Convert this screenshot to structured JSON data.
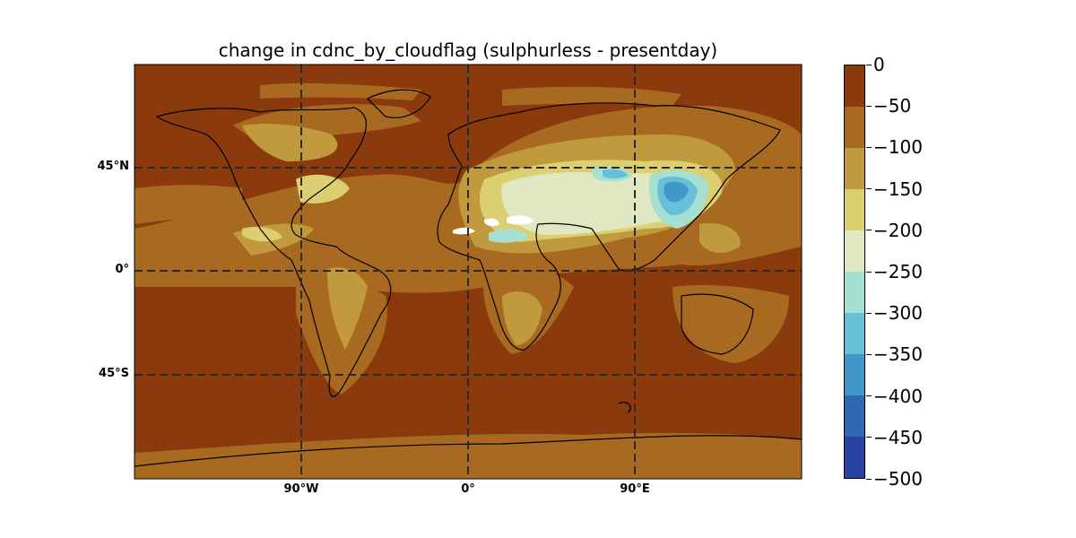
{
  "title": "change in cdnc_by_cloudflag (sulphurless - presentday)",
  "map": {
    "lat_labels": [
      {
        "lat": 45,
        "label": "45°N"
      },
      {
        "lat": 0,
        "label": "0°"
      },
      {
        "lat": -45,
        "label": "45°S"
      }
    ],
    "lon_labels": [
      {
        "lon": -90,
        "label": "90°W"
      },
      {
        "lon": 0,
        "label": "0°"
      },
      {
        "lon": 90,
        "label": "90°E"
      }
    ],
    "lon_range": [
      -180,
      180
    ],
    "lat_range": [
      -90,
      90
    ],
    "gridlines": "dashed"
  },
  "colorbar": {
    "ticks": [
      "0",
      "−50",
      "−100",
      "−150",
      "−200",
      "−250",
      "−300",
      "−350",
      "−400",
      "−450",
      "−500"
    ],
    "colors": [
      "#8b3a0e",
      "#a86a20",
      "#c09a3c",
      "#dccf72",
      "#dfe8c0",
      "#a6e0d2",
      "#67c0d6",
      "#3f98c8",
      "#3068b3",
      "#2742a0"
    ],
    "range": [
      -500,
      0
    ]
  }
}
